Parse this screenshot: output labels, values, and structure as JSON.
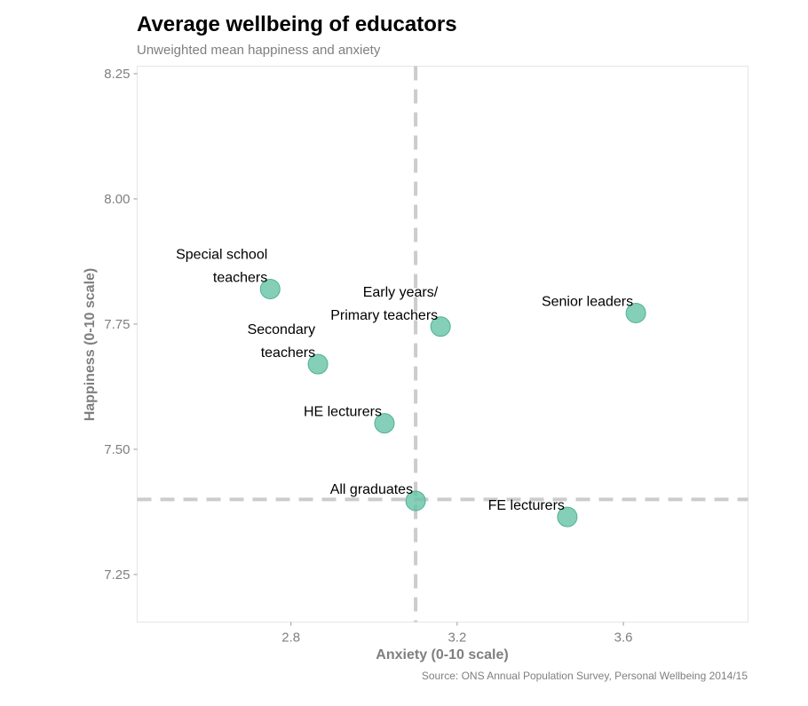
{
  "chart_data": {
    "type": "scatter",
    "title": "Average wellbeing of educators",
    "subtitle": "Unweighted mean happiness and anxiety",
    "xlabel": "Anxiety (0-10 scale)",
    "ylabel": "Happiness (0-10 scale)",
    "caption": "Source: ONS Annual Population Survey, Personal Wellbeing 2014/15",
    "xlim": [
      2.43,
      3.9
    ],
    "ylim": [
      7.155,
      8.265
    ],
    "xticks": [
      2.8,
      3.2,
      3.6
    ],
    "xtick_labels": [
      "2.8",
      "3.2",
      "3.6"
    ],
    "yticks": [
      7.25,
      7.5,
      7.75,
      8.0,
      8.25
    ],
    "ytick_labels": [
      "7.25",
      "7.50",
      "7.75",
      "8.00",
      "8.25"
    ],
    "grid": false,
    "reference_lines": {
      "vertical_x": 3.1,
      "horizontal_y": 7.4
    },
    "points": [
      {
        "label_lines": [
          "Special school",
          "teachers"
        ],
        "x": 2.75,
        "y": 7.82
      },
      {
        "label_lines": [
          "Secondary",
          "teachers"
        ],
        "x": 2.865,
        "y": 7.67
      },
      {
        "label_lines": [
          "Early years/",
          "Primary teachers"
        ],
        "x": 3.16,
        "y": 7.745
      },
      {
        "label_lines": [
          "Senior leaders"
        ],
        "x": 3.63,
        "y": 7.772
      },
      {
        "label_lines": [
          "HE lecturers"
        ],
        "x": 3.025,
        "y": 7.552
      },
      {
        "label_lines": [
          "All graduates"
        ],
        "x": 3.1,
        "y": 7.397
      },
      {
        "label_lines": [
          "FE lecturers"
        ],
        "x": 3.465,
        "y": 7.365
      }
    ],
    "colors": {
      "point_fill": "#66c2a5",
      "point_stroke": "#4fb392",
      "reference_line": "#cccccc",
      "panel_border": "#e5e5e5",
      "axis_text": "#7f7f7f"
    }
  }
}
